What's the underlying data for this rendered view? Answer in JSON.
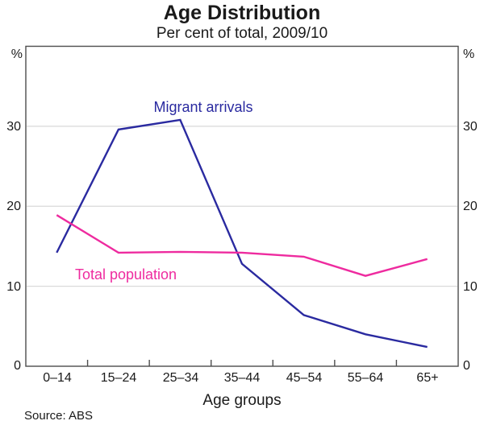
{
  "title": "Age Distribution",
  "subtitle": "Per cent of total, 2009/10",
  "source": "Source: ABS",
  "axis": {
    "unit": "%",
    "x_label": "Age groups",
    "y_tick_labels": [
      "30",
      "20",
      "10",
      "0"
    ]
  },
  "colors": {
    "migrant_arrivals": "#2a2aa0",
    "total_population": "#ee2b9f",
    "frame": "#4d4d4d",
    "gridline": "#d9d9d9"
  },
  "chart_data": {
    "type": "line",
    "title": "Age Distribution",
    "subtitle": "Per cent of total, 2009/10",
    "xlabel": "Age groups",
    "ylabel": "%",
    "ylim": [
      0,
      40
    ],
    "y_gridlines": [
      10,
      20,
      30
    ],
    "y_tick_values": [
      0,
      10,
      20,
      30
    ],
    "grid": "horizontal-only",
    "legend_position": "inline-annotations",
    "categories": [
      "0–14",
      "15–24",
      "25–34",
      "35–44",
      "45–54",
      "55–64",
      "65+"
    ],
    "series": [
      {
        "name": "Migrant arrivals",
        "color": "#2a2aa0",
        "values": [
          14.2,
          29.6,
          30.8,
          12.8,
          6.4,
          4.0,
          2.4
        ]
      },
      {
        "name": "Total population",
        "color": "#ee2b9f",
        "values": [
          18.9,
          14.2,
          14.3,
          14.2,
          13.7,
          11.3,
          13.4
        ]
      }
    ],
    "source": "Source: ABS"
  }
}
